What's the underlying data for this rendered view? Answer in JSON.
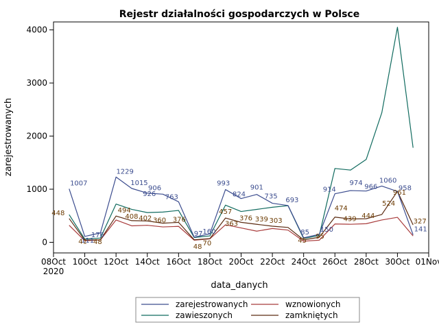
{
  "chart_data": {
    "type": "line",
    "title": "Rejestr działalności gospodarczych w Polsce",
    "xlabel": "data_danych",
    "ylabel": "zarejestrowanych",
    "ylim": [
      -200,
      4150
    ],
    "xlim": [
      "2020-10-08",
      "2020-11-01"
    ],
    "y_ticks": [
      0,
      1000,
      2000,
      3000,
      4000
    ],
    "x_ticks": [
      {
        "date": "2020-10-08",
        "label": "08Oct",
        "label2": "2020"
      },
      {
        "date": "2020-10-10",
        "label": "10Oct"
      },
      {
        "date": "2020-10-12",
        "label": "12Oct"
      },
      {
        "date": "2020-10-14",
        "label": "14Oct"
      },
      {
        "date": "2020-10-16",
        "label": "16Oct"
      },
      {
        "date": "2020-10-18",
        "label": "18Oct"
      },
      {
        "date": "2020-10-20",
        "label": "20Oct"
      },
      {
        "date": "2020-10-22",
        "label": "22Oct"
      },
      {
        "date": "2020-10-24",
        "label": "24Oct"
      },
      {
        "date": "2020-10-26",
        "label": "26Oct"
      },
      {
        "date": "2020-10-28",
        "label": "28Oct"
      },
      {
        "date": "2020-10-30",
        "label": "30Oct"
      },
      {
        "date": "2020-11-01",
        "label": "01Nov"
      }
    ],
    "grid": false,
    "legend_position": "bottom",
    "x": [
      "2020-10-09",
      "2020-10-10",
      "2020-10-11",
      "2020-10-12",
      "2020-10-13",
      "2020-10-14",
      "2020-10-15",
      "2020-10-16",
      "2020-10-17",
      "2020-10-18",
      "2020-10-19",
      "2020-10-20",
      "2020-10-21",
      "2020-10-22",
      "2020-10-23",
      "2020-10-24",
      "2020-10-25",
      "2020-10-26",
      "2020-10-27",
      "2020-10-28",
      "2020-10-29",
      "2020-10-30",
      "2020-10-31"
    ],
    "series": [
      {
        "name": "zarejestrowanych",
        "color": "#3b4c8e",
        "values": [
          1007,
          111,
          176,
          1229,
          1015,
          926,
          906,
          763,
          97,
          160,
          993,
          824,
          901,
          735,
          693,
          85,
          150,
          914,
          974,
          966,
          1060,
          958,
          141
        ],
        "labels": [
          "1007",
          "111",
          "176",
          "1229",
          "1015",
          "926",
          "906",
          "763",
          "97",
          "160",
          "993",
          "824",
          "901",
          "735",
          "693",
          "85",
          "150",
          "914",
          "974",
          "966",
          "1060",
          "958",
          "141"
        ],
        "label_color": "#3b4c8e"
      },
      {
        "name": "wznowionych",
        "color": "#a83a3a",
        "values": [
          320,
          30,
          45,
          420,
          310,
          320,
          290,
          300,
          40,
          65,
          330,
          270,
          210,
          260,
          230,
          20,
          40,
          345,
          340,
          350,
          420,
          470,
          120
        ]
      },
      {
        "name": "zawieszonych",
        "color": "#0f6a5e",
        "values": [
          520,
          60,
          80,
          720,
          620,
          560,
          570,
          600,
          90,
          120,
          700,
          580,
          620,
          660,
          690,
          70,
          130,
          1390,
          1360,
          1560,
          2440,
          4050,
          1780
        ]
      },
      {
        "name": "zamkniętych",
        "color": "#5a2a10",
        "values": [
          448,
          41,
          48,
          494,
          408,
          402,
          360,
          376,
          48,
          70,
          457,
          376,
          339,
          303,
          280,
          45,
          95,
          474,
          439,
          444,
          524,
          961,
          327
        ],
        "labels": [
          "448",
          "41",
          "48",
          "494",
          "408",
          "402",
          "360",
          "376",
          "48",
          "70",
          "457",
          "376",
          "339",
          "303",
          "",
          "45",
          "95",
          "474",
          "439",
          "444",
          "524",
          "961",
          "327"
        ],
        "label_color": "#6b3a00"
      }
    ],
    "legend": {
      "rows": [
        [
          "zarejestrowanych",
          "wznowionych"
        ],
        [
          "zawieszonych",
          "zamkniętych"
        ]
      ]
    },
    "extra_labels": [
      {
        "text": "363",
        "x": "2020-10-20",
        "y": 363,
        "color": "#6b3a00"
      }
    ]
  }
}
